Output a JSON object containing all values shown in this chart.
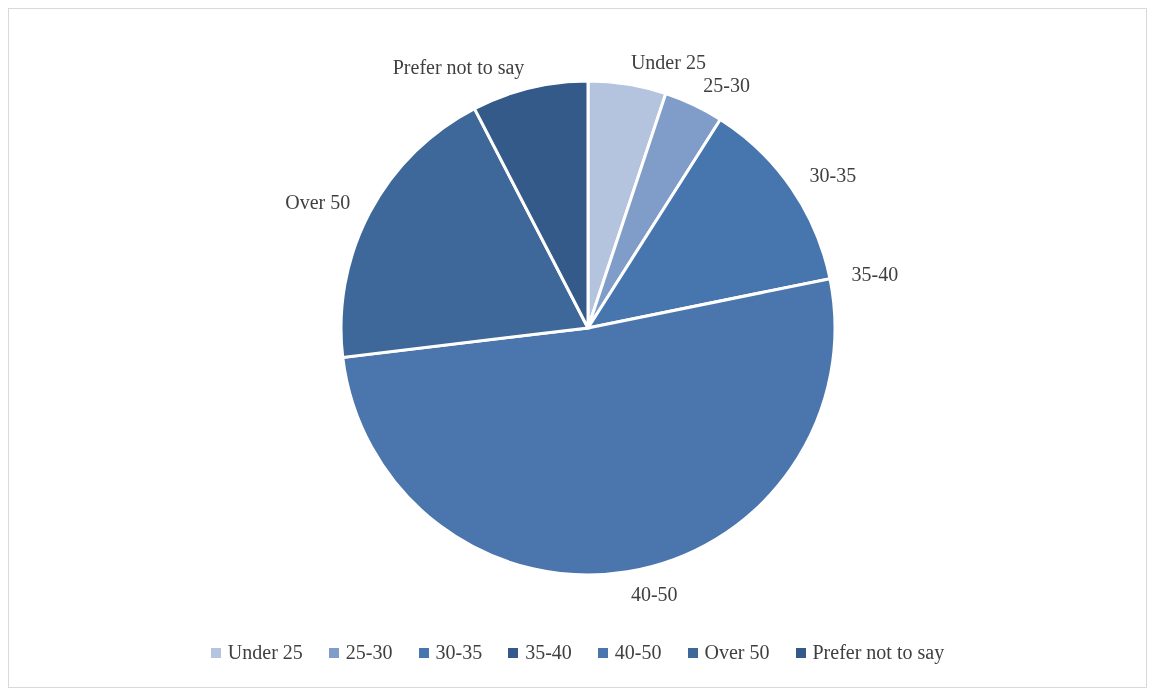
{
  "chart_data": {
    "type": "pie",
    "categories": [
      "Under 25",
      "25-30",
      "30-35",
      "35-40",
      "40-50",
      "Over 50",
      "Prefer not to say"
    ],
    "values": [
      5.1,
      3.9,
      12.8,
      0,
      51.3,
      19.3,
      7.6
    ],
    "colors": [
      "#b4c3de",
      "#7f9dc8",
      "#4775ae",
      "#335a8a",
      "#4a76ad",
      "#3e6899",
      "#335a88"
    ],
    "legend": "bottom"
  }
}
